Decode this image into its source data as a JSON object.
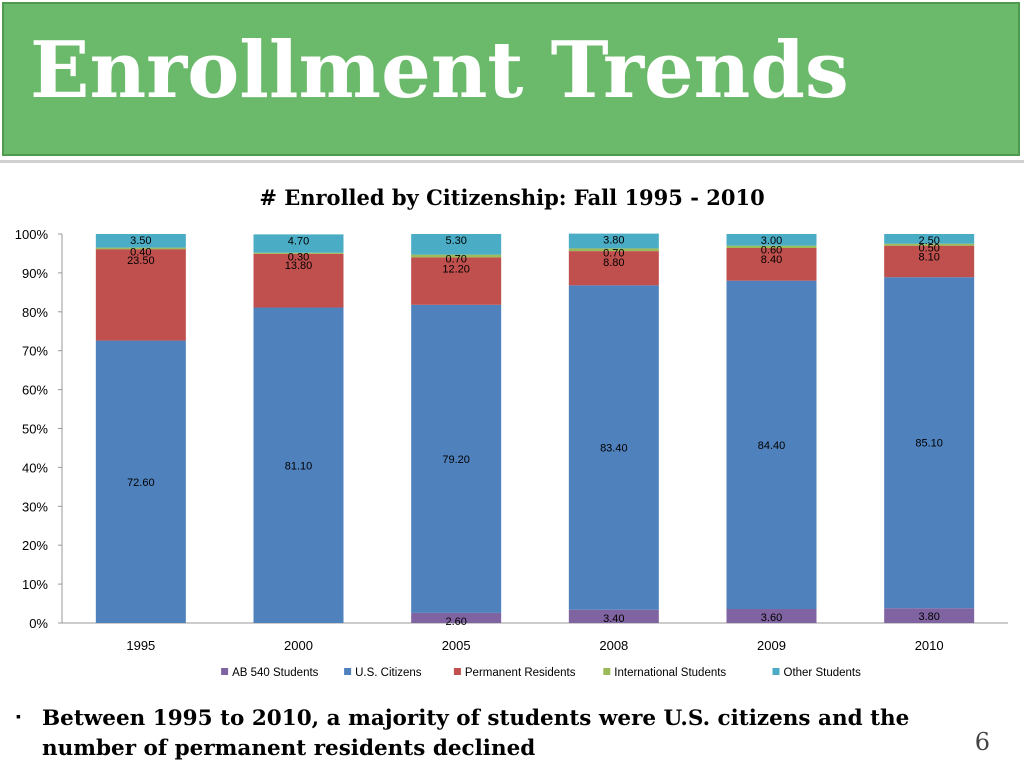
{
  "slide": {
    "title": "Enrollment Trends",
    "note": "Between 1995 to 2010, a majority of students were U.S. citizens and the number of permanent residents declined",
    "page_number": "6",
    "bullet": "▪"
  },
  "chart_data": {
    "type": "bar",
    "stacked": true,
    "percent": true,
    "title": "# Enrolled by Citizenship: Fall 1995 - 2010",
    "categories": [
      "1995",
      "2000",
      "2005",
      "2008",
      "2009",
      "2010"
    ],
    "y_ticks": [
      "0%",
      "10%",
      "20%",
      "30%",
      "40%",
      "50%",
      "60%",
      "70%",
      "80%",
      "90%",
      "100%"
    ],
    "ylim": [
      0,
      100
    ],
    "legend_position": "bottom",
    "series": [
      {
        "name": "AB 540 Students",
        "color": "#8064a2",
        "values": [
          0,
          0,
          2.6,
          3.4,
          3.6,
          3.8
        ],
        "labels": [
          "",
          "",
          "2.60",
          "3.40",
          "3.60",
          "3.80"
        ]
      },
      {
        "name": "U.S. Citizens",
        "color": "#4f81bd",
        "values": [
          72.6,
          81.1,
          79.2,
          83.4,
          84.4,
          85.1
        ],
        "labels": [
          "72.60",
          "81.10",
          "79.20",
          "83.40",
          "84.40",
          "85.10"
        ]
      },
      {
        "name": "Permanent Residents",
        "color": "#c0504d",
        "values": [
          23.5,
          13.8,
          12.2,
          8.8,
          8.4,
          8.1
        ],
        "labels": [
          "23.50",
          "13.80",
          "12.20",
          "8.80",
          "8.40",
          "8.10"
        ]
      },
      {
        "name": "International Students",
        "color": "#9bbb59",
        "values": [
          0.4,
          0.3,
          0.7,
          0.7,
          0.6,
          0.5
        ],
        "labels": [
          "0.40",
          "0.30",
          "0.70",
          "0.70",
          "0.60",
          "0.50"
        ]
      },
      {
        "name": "Other Students",
        "color": "#4bacc6",
        "values": [
          3.5,
          4.7,
          5.3,
          3.8,
          3.0,
          2.5
        ],
        "labels": [
          "3.50",
          "4.70",
          "5.30",
          "3.80",
          "3.00",
          "2.50"
        ]
      }
    ]
  }
}
